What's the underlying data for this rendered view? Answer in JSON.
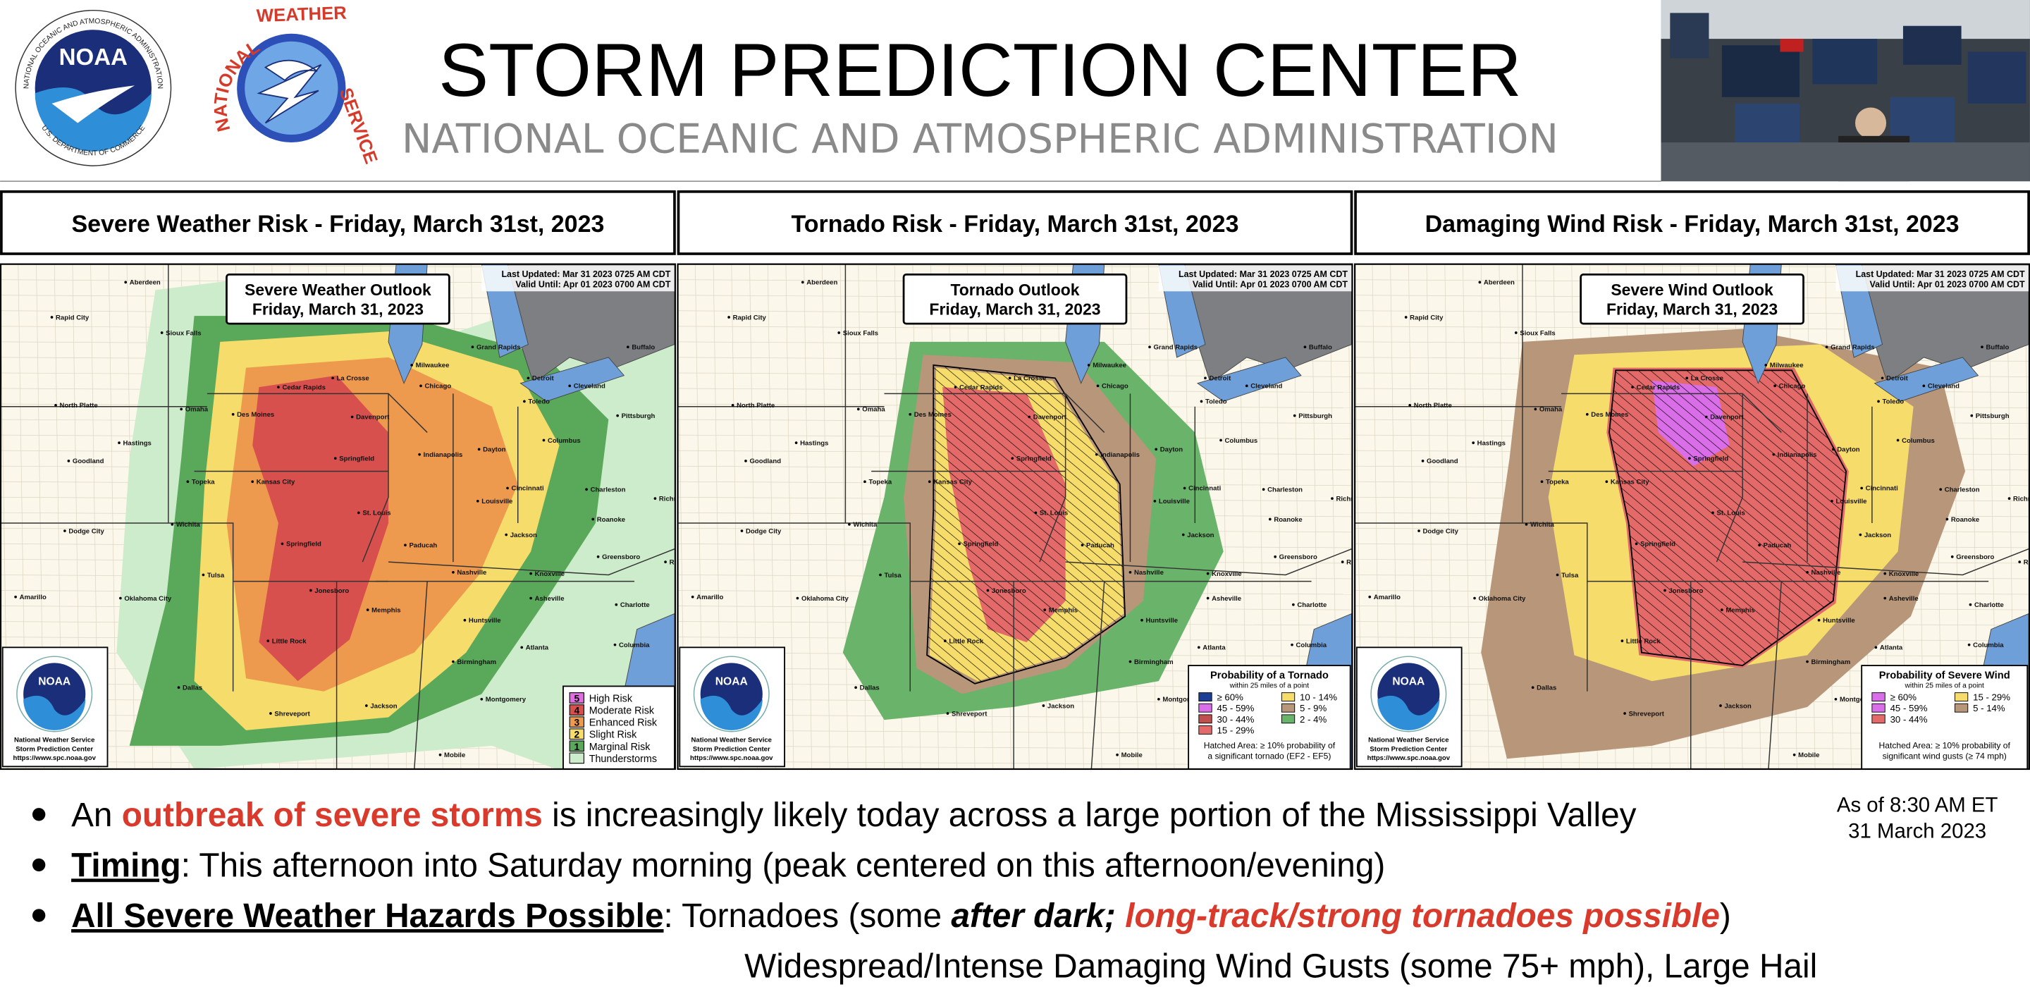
{
  "header": {
    "title": "STORM PREDICTION CENTER",
    "subtitle": "NATIONAL OCEANIC AND ATMOSPHERIC ADMINISTRATION",
    "noaa_logo": {
      "name": "NOAA",
      "ring_top": "NATIONAL OCEANIC AND ATMOSPHERIC ADMINISTRATION",
      "ring_bottom": "U.S. DEPARTMENT OF COMMERCE"
    },
    "nws_logo": {
      "ring_left": "NATIONAL",
      "ring_top": "WEATHER",
      "ring_right": "SERVICE"
    }
  },
  "panels": [
    {
      "heading": "Severe Weather Risk - Friday, March 31st, 2023",
      "outlook_title": "Severe Weather Outlook",
      "outlook_date": "Friday, March 31, 2023",
      "last_updated": "Last Updated: Mar 31 2023 0725 AM CDT",
      "valid_until": "Valid Until: Apr 01 2023 0700 AM CDT",
      "legend": {
        "items": [
          {
            "level": 5,
            "label": "High Risk"
          },
          {
            "level": 4,
            "label": "Moderate Risk"
          },
          {
            "level": 3,
            "label": "Enhanced Risk"
          },
          {
            "level": 2,
            "label": "Slight Risk"
          },
          {
            "level": 1,
            "label": "Marginal Risk"
          },
          {
            "label": "Thunderstorms"
          }
        ]
      }
    },
    {
      "heading": "Tornado Risk - Friday, March 31st, 2023",
      "outlook_title": "Tornado Outlook",
      "outlook_date": "Friday, March 31, 2023",
      "last_updated": "Last Updated: Mar 31 2023 0725 AM CDT",
      "valid_until": "Valid Until: Apr 01 2023 0700 AM CDT",
      "legend": {
        "title": "Probability of a Tornado",
        "subtitle": "within 25 miles of a point",
        "items": [
          {
            "label": "≥ 60%"
          },
          {
            "label": "45 - 59%"
          },
          {
            "label": "30 - 44%"
          },
          {
            "label": "15 - 29%"
          },
          {
            "label": "10 - 14%"
          },
          {
            "label": "5 - 9%"
          },
          {
            "label": "2 - 4%"
          }
        ],
        "note": [
          "Hatched Area: ≥ 10% probability of",
          "a significant tornado (EF2 - EF5)"
        ]
      }
    },
    {
      "heading": "Damaging Wind Risk - Friday, March 31st, 2023",
      "outlook_title": "Severe Wind Outlook",
      "outlook_date": "Friday, March 31, 2023",
      "last_updated": "Last Updated: Mar 31 2023 0725 AM CDT",
      "valid_until": "Valid Until: Apr 01 2023 0700 AM CDT",
      "legend": {
        "title": "Probability of Severe Wind",
        "subtitle": "within 25 miles of a point",
        "items": [
          {
            "label": "≥ 60%"
          },
          {
            "label": "45 - 59%"
          },
          {
            "label": "30 - 44%"
          },
          {
            "label": "15 - 29%"
          },
          {
            "label": "5 - 14%"
          }
        ],
        "note": [
          "Hatched Area: ≥ 10% probability of",
          "significant wind gusts (≥ 74 mph)"
        ]
      }
    }
  ],
  "map_logo": {
    "name": "NOAA",
    "caption": [
      "National Weather Service",
      "Storm Prediction Center",
      "https://www.spc.noaa.gov"
    ]
  },
  "map_cities": [
    "Aberdeen",
    "Rapid City",
    "Sioux Falls",
    "La Crosse",
    "Milwaukee",
    "Grand Rapids",
    "Buffalo",
    "Detroit",
    "Cleveland",
    "Toledo",
    "North Platte",
    "Omaha",
    "Des Moines",
    "Cedar Rapids",
    "Davenport",
    "Chicago",
    "Pittsburgh",
    "Hastings",
    "Goodland",
    "Springfield",
    "Indianapolis",
    "Dayton",
    "Columbus",
    "Kansas City",
    "Topeka",
    "St. Louis",
    "Louisville",
    "Cincinnati",
    "Charleston",
    "Richmond",
    "Wichita",
    "Dodge City",
    "Springfield",
    "Paducah",
    "Roanoke",
    "Jackson",
    "Nashville",
    "Knoxville",
    "Greensboro",
    "Raleigh",
    "Tulsa",
    "Jonesboro",
    "Asheville",
    "Amarillo",
    "Oklahoma City",
    "Memphis",
    "Charlotte",
    "Huntsville",
    "Little Rock",
    "Columbia",
    "Atlanta",
    "Birmingham",
    "Dallas",
    "Montgomery",
    "Jackson",
    "Shreveport",
    "Mobile"
  ],
  "bullets": [
    [
      "An ",
      "outbreak of severe storms",
      " is increasingly likely today across a large portion of the Mississippi Valley"
    ],
    [
      "Timing",
      ": This afternoon into Saturday morning (peak centered on this afternoon/evening)"
    ],
    [
      "All Severe Weather Hazards Possible",
      ": Tornadoes (some ",
      "after dark;",
      " ",
      "long-track/strong tornadoes possible",
      ")",
      "Widespread/Intense Damaging Wind Gusts (some 75+ mph), Large Hail"
    ]
  ],
  "timestamp": [
    "As of 8:30 AM ET",
    "31 March 2023"
  ]
}
